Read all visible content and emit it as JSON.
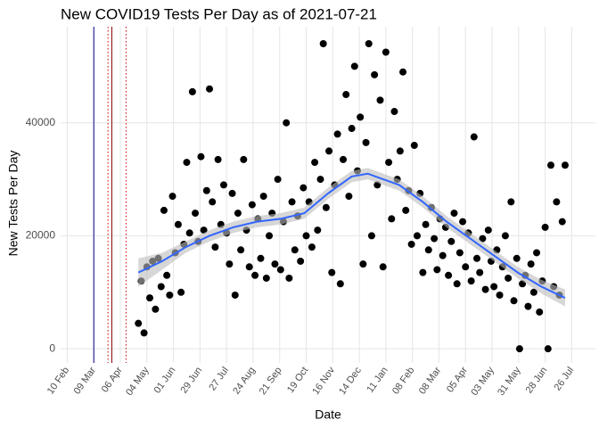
{
  "chart_data": {
    "type": "scatter",
    "title": "New COVID19 Tests Per Day as of 2021-07-21",
    "x_label": "Date",
    "y_label": "New Tests Per Day",
    "xlim": [
      -7,
      557
    ],
    "ylim": [
      -2500,
      57000
    ],
    "xticks": [
      {
        "value": 0,
        "label": "10 Feb"
      },
      {
        "value": 28,
        "label": "09 Mar"
      },
      {
        "value": 56,
        "label": "06 Apr"
      },
      {
        "value": 84,
        "label": "04 May"
      },
      {
        "value": 112,
        "label": "01 Jun"
      },
      {
        "value": 140,
        "label": "29 Jun"
      },
      {
        "value": 168,
        "label": "27 Jul"
      },
      {
        "value": 196,
        "label": "24 Aug"
      },
      {
        "value": 224,
        "label": "21 Sep"
      },
      {
        "value": 252,
        "label": "19 Oct"
      },
      {
        "value": 280,
        "label": "16 Nov"
      },
      {
        "value": 308,
        "label": "14 Dec"
      },
      {
        "value": 336,
        "label": "11 Jan"
      },
      {
        "value": 364,
        "label": "08 Feb"
      },
      {
        "value": 392,
        "label": "08 Mar"
      },
      {
        "value": 420,
        "label": "05 Apr"
      },
      {
        "value": 448,
        "label": "03 May"
      },
      {
        "value": 476,
        "label": "31 May"
      },
      {
        "value": 504,
        "label": "28 Jun"
      },
      {
        "value": 532,
        "label": "26 Jul"
      }
    ],
    "yticks": [
      0,
      20000,
      40000
    ],
    "grid": true,
    "vlines": [
      {
        "x": 28,
        "color": "#00008b",
        "style": "solid"
      },
      {
        "x": 43,
        "color": "#cc0000",
        "style": "dotted"
      },
      {
        "x": 47,
        "color": "#8b0000",
        "style": "solid"
      },
      {
        "x": 62,
        "color": "#cc0000",
        "style": "dotted"
      }
    ],
    "series": [
      {
        "color": "#000000",
        "x": [
          75,
          78,
          81,
          84,
          87,
          90,
          93,
          96,
          99,
          102,
          105,
          108,
          111,
          114,
          117,
          120,
          123,
          126,
          129,
          132,
          135,
          138,
          141,
          144,
          147,
          150,
          153,
          156,
          159,
          162,
          165,
          168,
          171,
          174,
          177,
          180,
          183,
          186,
          189,
          192,
          195,
          198,
          201,
          204,
          207,
          210,
          213,
          216,
          219,
          222,
          225,
          228,
          231,
          234,
          237,
          240,
          243,
          246,
          249,
          252,
          255,
          258,
          261,
          264,
          267,
          270,
          273,
          276,
          279,
          282,
          285,
          288,
          291,
          294,
          297,
          300,
          303,
          306,
          309,
          312,
          315,
          318,
          321,
          324,
          327,
          330,
          333,
          336,
          339,
          342,
          345,
          348,
          351,
          354,
          357,
          360,
          363,
          366,
          369,
          372,
          375,
          378,
          381,
          384,
          387,
          390,
          393,
          396,
          399,
          402,
          405,
          408,
          411,
          414,
          417,
          420,
          423,
          426,
          429,
          432,
          435,
          438,
          441,
          444,
          447,
          450,
          453,
          456,
          459,
          462,
          465,
          468,
          471,
          474,
          477,
          480,
          483,
          486,
          489,
          492,
          495,
          498,
          501,
          504,
          507,
          510,
          513,
          516,
          519,
          522,
          525
        ],
        "values": [
          4500,
          12000,
          2800,
          14500,
          9000,
          15500,
          7000,
          16000,
          11000,
          24500,
          13000,
          9500,
          27000,
          17000,
          22000,
          10000,
          18500,
          33000,
          20500,
          45500,
          24000,
          19000,
          34000,
          21000,
          28000,
          46000,
          26000,
          18000,
          33500,
          22000,
          29000,
          20500,
          15000,
          27500,
          9500,
          24000,
          17500,
          33500,
          21000,
          14500,
          25500,
          13000,
          23000,
          16000,
          27000,
          12500,
          20000,
          24000,
          15000,
          30000,
          14000,
          22500,
          40000,
          12500,
          26000,
          17500,
          23500,
          15500,
          28500,
          20000,
          26000,
          18000,
          33000,
          21000,
          30000,
          54000,
          25000,
          35000,
          13500,
          29000,
          38000,
          11500,
          33500,
          45000,
          27000,
          39000,
          50000,
          31500,
          41000,
          15000,
          36500,
          54000,
          20000,
          48500,
          29000,
          44000,
          14500,
          52500,
          33000,
          23000,
          42000,
          30000,
          35000,
          49000,
          24500,
          28000,
          18500,
          36000,
          20000,
          27500,
          13500,
          22000,
          17500,
          25000,
          19500,
          14000,
          23000,
          16500,
          21500,
          13000,
          19000,
          24000,
          11500,
          17000,
          22500,
          14500,
          20500,
          12000,
          37500,
          16000,
          13500,
          19500,
          10500,
          21000,
          15500,
          11000,
          17500,
          9500,
          14500,
          20000,
          12500,
          26000,
          8500,
          16000,
          0,
          11500,
          13000,
          7500,
          15000,
          10000,
          17000,
          6500,
          12000,
          21500,
          0,
          32500,
          11000,
          26000,
          9500,
          22500,
          32500
        ]
      }
    ],
    "smooth": {
      "color": "#3366ff",
      "band_color": "#bdbdbd",
      "x": [
        75,
        100,
        125,
        150,
        175,
        200,
        225,
        250,
        275,
        300,
        317,
        325,
        350,
        375,
        400,
        425,
        450,
        475,
        500,
        525
      ],
      "values": [
        13500,
        15500,
        18000,
        20000,
        21500,
        22500,
        23000,
        24000,
        27500,
        30500,
        31000,
        30500,
        29000,
        26000,
        22500,
        19500,
        16500,
        13500,
        11000,
        9000
      ],
      "lower": [
        11000,
        14000,
        17000,
        19000,
        20500,
        21500,
        22000,
        23000,
        26500,
        29500,
        30000,
        29500,
        28000,
        25000,
        21500,
        18500,
        15500,
        12500,
        9800,
        7500
      ],
      "upper": [
        16000,
        17000,
        19000,
        21000,
        22500,
        23500,
        24000,
        25000,
        28500,
        31500,
        32000,
        31500,
        30000,
        27000,
        23500,
        20500,
        17500,
        14500,
        12200,
        10500
      ]
    }
  }
}
